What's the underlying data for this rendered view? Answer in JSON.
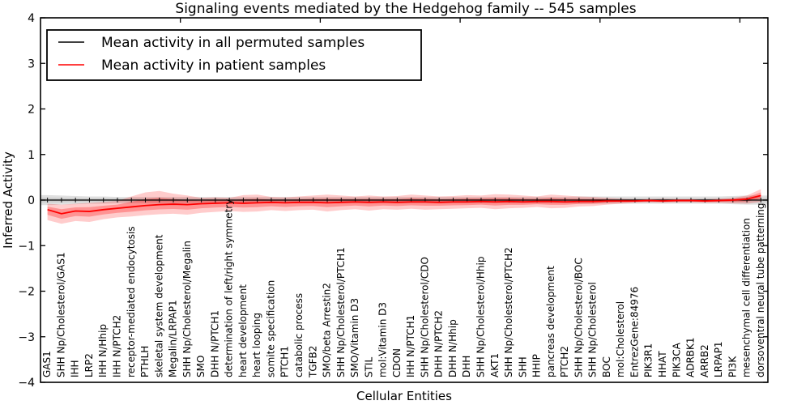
{
  "title": "Signaling events mediated by the Hedgehog family -- 545 samples",
  "axes": {
    "xlabel": "Cellular Entities",
    "ylabel": "Inferred Activity",
    "ylim": [
      -4,
      4
    ],
    "y_ticks": [
      4,
      3,
      2,
      1,
      0,
      -1,
      -2,
      -3,
      -4
    ],
    "x_tick_values": [
      10,
      20,
      30,
      40,
      50
    ]
  },
  "legend": {
    "items": [
      {
        "label": "Mean activity in all permuted samples",
        "color": "#000000"
      },
      {
        "label": "Mean activity in patient samples",
        "color": "#ff0000"
      }
    ]
  },
  "colors": {
    "permuted_line": "#000000",
    "patient_line": "#ff0000",
    "permuted_band": "#999999",
    "patient_band": "#ff0000",
    "spine": "#000000",
    "background": "#ffffff"
  },
  "chart_data": {
    "type": "line",
    "title": "Signaling events mediated by the Hedgehog family -- 545 samples",
    "xlabel": "Cellular Entities",
    "ylabel": "Inferred Activity",
    "ylim": [
      -4,
      4
    ],
    "grid": false,
    "legend_position": "upper left",
    "categories": [
      "GAS1",
      "SHH Np/Cholesterol/GAS1",
      "IHH",
      "LRP2",
      "IHH N/Hhip",
      "IHH N/PTCH2",
      "receptor-mediated endocytosis",
      "PTHLH",
      "skeletal system development",
      "Megalin/LRPAP1",
      "SHH Np/Cholesterol/Megalin",
      "SMO",
      "DHH N/PTCH1",
      "determination of left/right symmetry",
      "heart development",
      "heart looping",
      "somite specification",
      "PTCH1",
      "catabolic process",
      "TGFB2",
      "SMO/beta Arrestin2",
      "SHH Np/Cholesterol/PTCH1",
      "SMO/Vitamin D3",
      "STIL",
      "mol:Vitamin D3",
      "CDON",
      "IHH N/PTCH1",
      "SHH Np/Cholesterol/CDO",
      "DHH N/PTCH2",
      "DHH N/Hhip",
      "DHH",
      "SHH Np/Cholesterol/Hhip",
      "AKT1",
      "SHH Np/Cholesterol/PTCH2",
      "SHH",
      "HHIP",
      "pancreas development",
      "PTCH2",
      "SHH Np/Cholesterol/BOC",
      "SHH Np/Cholesterol",
      "BOC",
      "mol:Cholesterol",
      "EntrezGene:84976",
      "PIK3R1",
      "HHAT",
      "PIK3CA",
      "ADRBK1",
      "ARRB2",
      "LRPAP1",
      "PI3K",
      "mesenchymal cell differentiation",
      "dorsoventral neural tube patterning"
    ],
    "series": [
      {
        "name": "Mean activity in all permuted samples",
        "color": "#000000",
        "band_color": "#999999",
        "extend_to_edges": true,
        "markers": true,
        "values": [
          0,
          0,
          0,
          0,
          0,
          0,
          0,
          0,
          0,
          0,
          0,
          0,
          0,
          0,
          0,
          0,
          0,
          0,
          0,
          0,
          0,
          0,
          0,
          0,
          0,
          0,
          0,
          0,
          0,
          0,
          0,
          0,
          0,
          0,
          0,
          0,
          0,
          0,
          0,
          0,
          0,
          0,
          0,
          0,
          0,
          0,
          0,
          0,
          0,
          0,
          0,
          0
        ],
        "band_top": [
          0.11,
          0.1,
          0.09,
          0.08,
          0.08,
          0.07,
          0.07,
          0.07,
          0.07,
          0.07,
          0.07,
          0.07,
          0.07,
          0.07,
          0.07,
          0.07,
          0.07,
          0.07,
          0.07,
          0.07,
          0.07,
          0.07,
          0.07,
          0.07,
          0.07,
          0.07,
          0.07,
          0.07,
          0.07,
          0.07,
          0.07,
          0.07,
          0.07,
          0.07,
          0.07,
          0.07,
          0.07,
          0.07,
          0.08,
          0.08,
          0.08,
          0.08,
          0.08,
          0.08,
          0.08,
          0.08,
          0.08,
          0.08,
          0.08,
          0.09,
          0.1,
          0.1
        ],
        "band_bottom": [
          -0.11,
          -0.1,
          -0.09,
          -0.08,
          -0.08,
          -0.07,
          -0.07,
          -0.07,
          -0.07,
          -0.07,
          -0.07,
          -0.07,
          -0.07,
          -0.07,
          -0.07,
          -0.07,
          -0.07,
          -0.07,
          -0.07,
          -0.07,
          -0.07,
          -0.07,
          -0.07,
          -0.07,
          -0.07,
          -0.07,
          -0.07,
          -0.07,
          -0.07,
          -0.07,
          -0.07,
          -0.07,
          -0.07,
          -0.07,
          -0.07,
          -0.07,
          -0.07,
          -0.07,
          -0.08,
          -0.08,
          -0.08,
          -0.08,
          -0.08,
          -0.08,
          -0.08,
          -0.08,
          -0.08,
          -0.08,
          -0.08,
          -0.09,
          -0.1,
          -0.1
        ]
      },
      {
        "name": "Mean activity in patient samples",
        "color": "#ff0000",
        "band_color": "#ff0000",
        "extend_to_edges": false,
        "markers": false,
        "values": [
          -0.21,
          -0.3,
          -0.24,
          -0.25,
          -0.21,
          -0.18,
          -0.15,
          -0.12,
          -0.1,
          -0.09,
          -0.1,
          -0.08,
          -0.07,
          -0.06,
          -0.07,
          -0.06,
          -0.05,
          -0.06,
          -0.05,
          -0.05,
          -0.06,
          -0.05,
          -0.04,
          -0.05,
          -0.04,
          -0.05,
          -0.04,
          -0.04,
          -0.05,
          -0.04,
          -0.04,
          -0.03,
          -0.04,
          -0.03,
          -0.04,
          -0.03,
          -0.03,
          -0.04,
          -0.03,
          -0.03,
          -0.02,
          -0.02,
          -0.02,
          -0.01,
          -0.02,
          -0.01,
          -0.01,
          -0.02,
          -0.01,
          0.0,
          0.02,
          0.1
        ],
        "band_top": [
          -0.08,
          -0.1,
          -0.08,
          -0.06,
          -0.04,
          -0.02,
          0.08,
          0.17,
          0.2,
          0.14,
          0.1,
          0.05,
          0.06,
          0.05,
          0.11,
          0.12,
          0.07,
          0.06,
          0.08,
          0.1,
          0.12,
          0.1,
          0.08,
          0.1,
          0.08,
          0.09,
          0.12,
          0.1,
          0.08,
          0.09,
          0.11,
          0.1,
          0.13,
          0.12,
          0.1,
          0.08,
          0.12,
          0.1,
          0.08,
          0.07,
          0.05,
          0.03,
          0.02,
          0.02,
          0.03,
          0.02,
          0.02,
          0.02,
          0.03,
          0.05,
          0.1,
          0.24
        ],
        "band_bottom": [
          -0.44,
          -0.52,
          -0.46,
          -0.48,
          -0.42,
          -0.38,
          -0.36,
          -0.33,
          -0.31,
          -0.3,
          -0.32,
          -0.28,
          -0.26,
          -0.24,
          -0.26,
          -0.25,
          -0.22,
          -0.24,
          -0.22,
          -0.21,
          -0.25,
          -0.22,
          -0.2,
          -0.23,
          -0.2,
          -0.21,
          -0.19,
          -0.21,
          -0.2,
          -0.19,
          -0.18,
          -0.17,
          -0.2,
          -0.18,
          -0.17,
          -0.15,
          -0.18,
          -0.17,
          -0.14,
          -0.13,
          -0.1,
          -0.08,
          -0.06,
          -0.05,
          -0.06,
          -0.05,
          -0.05,
          -0.06,
          -0.06,
          -0.07,
          -0.08,
          -0.04
        ]
      }
    ]
  }
}
